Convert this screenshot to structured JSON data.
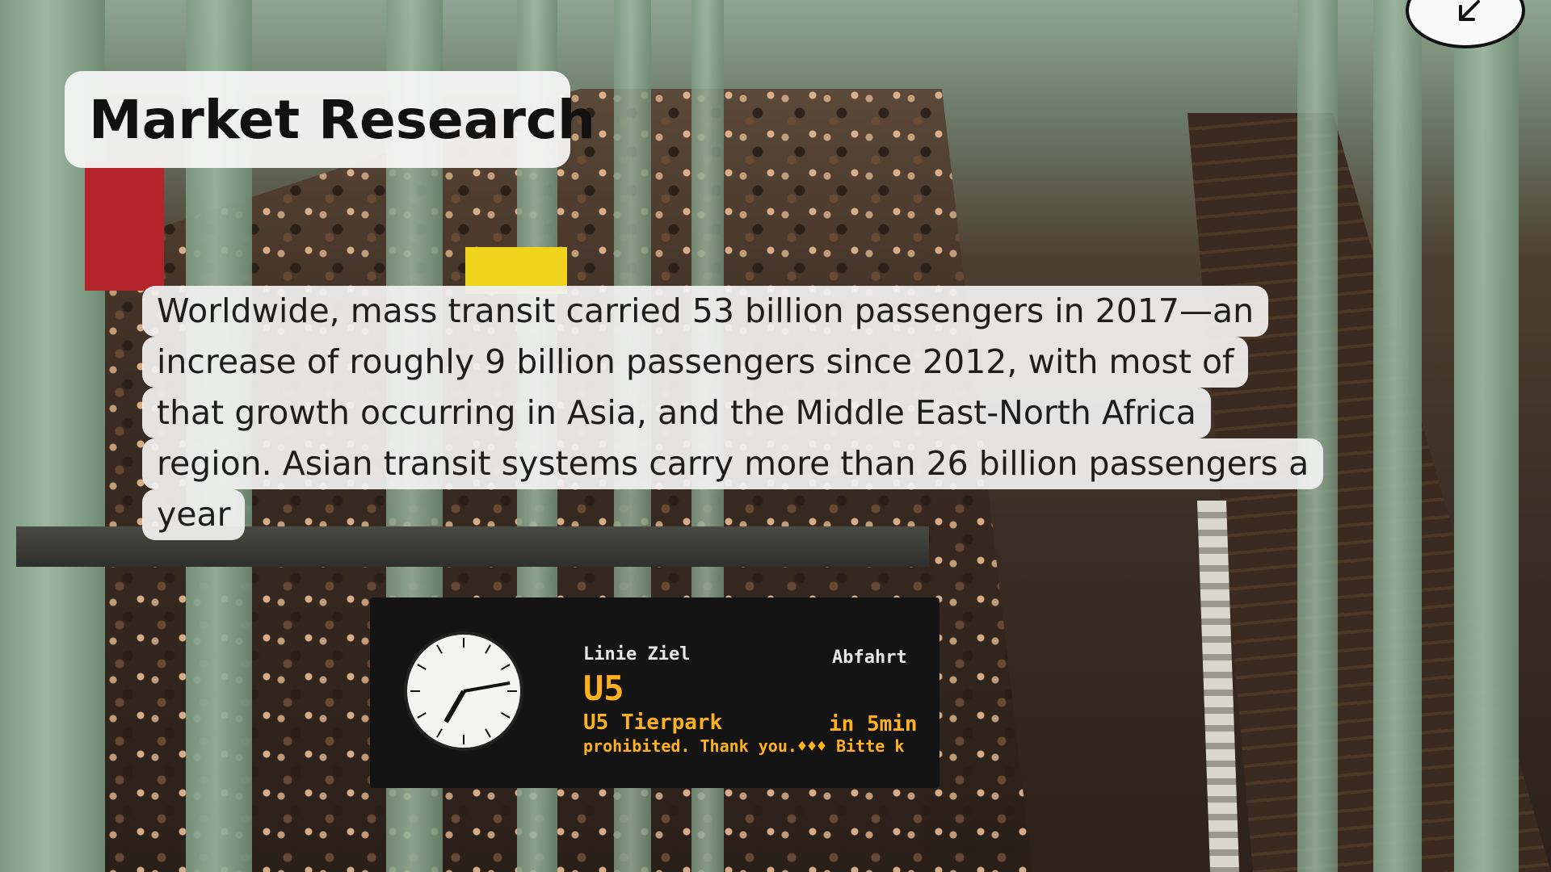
{
  "slide": {
    "title": "Market Research",
    "paragraph_lines": [
      "Worldwide, mass transit carried 53 billion passengers in 2017—an",
      "increase of roughly 9 billion passengers since 2012, with most of",
      "that growth occurring in Asia, and the Middle East-North Africa",
      "region. Asian transit systems carry more than 26 billion passengers a",
      "year"
    ]
  },
  "photo": {
    "board": {
      "header_left": "Linie Ziel",
      "header_right": "Abfahrt",
      "line1": "U5",
      "line2_route": "U5   Tierpark",
      "line2_time": "in 5min",
      "ticker": "prohibited. Thank you.♦♦♦ Bitte k"
    },
    "colors": {
      "pillar": "#9db7a1",
      "sign_yellow": "#f0d51c",
      "display_amber": "#ffb21d"
    }
  },
  "controls": {
    "corner_icon": "arrow-down-left-icon"
  }
}
